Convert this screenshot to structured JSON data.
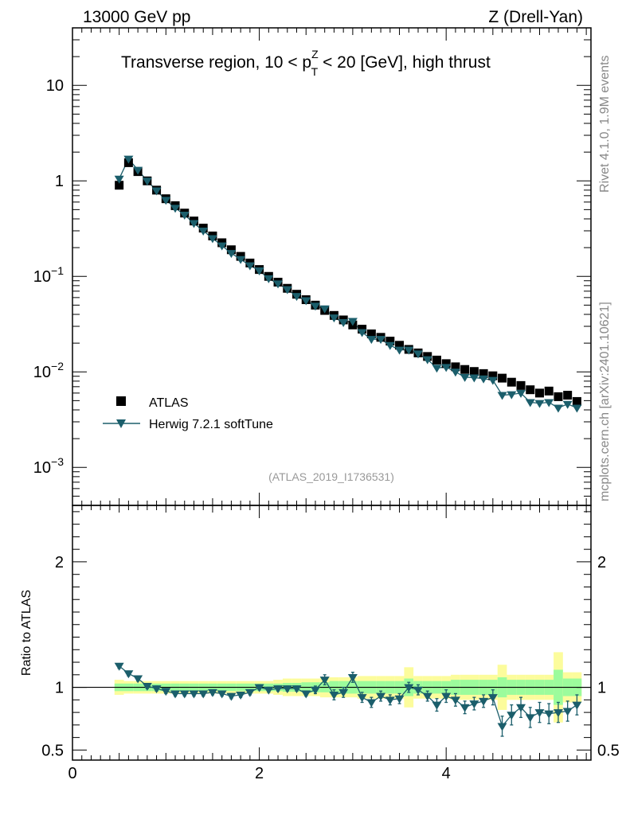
{
  "header": {
    "left": "13000 GeV pp",
    "right": "Z (Drell-Yan)"
  },
  "side_labels": {
    "rivet": "Rivet 4.1.0,  1.9M events",
    "mcplots": "mcplots.cern.ch [arXiv:2401.10621]"
  },
  "reference": "(ATLAS_2019_I1736531)",
  "colors": {
    "mc": "#1b5e6b",
    "data": "#000000",
    "band_inner": "#9cfc9c",
    "band_outer": "#fcfc9c"
  },
  "chart_data": [
    {
      "type": "scatter",
      "title": "Transverse region, 10 < p_T^Z < 20 [GeV], high thrust",
      "title_parts": {
        "prefix": "Transverse region, 10 < p",
        "sup": "Z",
        "sub": "T",
        "suffix": " < 20 [GeV], high thrust"
      },
      "yscale": "log",
      "ylim": [
        0.0004,
        40
      ],
      "xlim": [
        0,
        5.55
      ],
      "y_tick_labels": [
        "10",
        "1",
        "10^-1",
        "10^-2",
        "10^-3"
      ],
      "y_tick_parts": [
        {
          "base": "10",
          "exp": ""
        },
        {
          "base": "1",
          "exp": ""
        },
        {
          "base": "10",
          "exp": "−1"
        },
        {
          "base": "10",
          "exp": "−2"
        },
        {
          "base": "10",
          "exp": "−3"
        }
      ],
      "legend_position": "lower-left",
      "x": [
        0.5,
        0.6,
        0.7,
        0.8,
        0.9,
        1.0,
        1.1,
        1.2,
        1.3,
        1.4,
        1.5,
        1.6,
        1.7,
        1.8,
        1.9,
        2.0,
        2.1,
        2.2,
        2.3,
        2.4,
        2.5,
        2.6,
        2.7,
        2.8,
        2.9,
        3.0,
        3.1,
        3.2,
        3.3,
        3.4,
        3.5,
        3.6,
        3.7,
        3.8,
        3.9,
        4.0,
        4.1,
        4.2,
        4.3,
        4.4,
        4.5,
        4.6,
        4.7,
        4.8,
        4.9,
        5.0,
        5.1,
        5.2,
        5.3,
        5.4
      ],
      "series": [
        {
          "name": "ATLAS",
          "marker": "square",
          "values": [
            0.9,
            1.55,
            1.25,
            1.0,
            0.8,
            0.65,
            0.55,
            0.46,
            0.38,
            0.32,
            0.265,
            0.225,
            0.19,
            0.162,
            0.138,
            0.118,
            0.1,
            0.087,
            0.075,
            0.065,
            0.057,
            0.05,
            0.044,
            0.039,
            0.035,
            0.031,
            0.028,
            0.025,
            0.023,
            0.021,
            0.019,
            0.0172,
            0.0158,
            0.0145,
            0.0133,
            0.0122,
            0.0113,
            0.0106,
            0.0101,
            0.0096,
            0.0091,
            0.0086,
            0.0078,
            0.0072,
            0.0065,
            0.006,
            0.0063,
            0.0055,
            0.0057,
            0.0049
          ]
        },
        {
          "name": "Herwig 7.2.1 softTune",
          "marker": "triangle-down",
          "values": [
            1.05,
            1.7,
            1.3,
            1.0,
            0.79,
            0.63,
            0.52,
            0.44,
            0.36,
            0.3,
            0.25,
            0.21,
            0.175,
            0.151,
            0.13,
            0.115,
            0.095,
            0.084,
            0.073,
            0.062,
            0.056,
            0.049,
            0.046,
            0.037,
            0.033,
            0.034,
            0.026,
            0.022,
            0.022,
            0.019,
            0.017,
            0.017,
            0.0155,
            0.0135,
            0.011,
            0.0112,
            0.01,
            0.0088,
            0.0087,
            0.0085,
            0.0082,
            0.0057,
            0.0058,
            0.006,
            0.0048,
            0.0047,
            0.0048,
            0.0042,
            0.0046,
            0.0042
          ]
        }
      ]
    },
    {
      "type": "scatter",
      "title": "",
      "xlabel": "",
      "ylabel": "Ratio to ATLAS",
      "ylim": [
        0.42,
        2.45
      ],
      "xlim": [
        0,
        5.55
      ],
      "x_ticks": [
        0,
        2,
        4
      ],
      "x_tick_labels": [
        "0",
        "2",
        "4"
      ],
      "y_ticks": [
        0.5,
        1,
        2
      ],
      "y_tick_labels": [
        "0.5",
        "1",
        "2"
      ],
      "x": [
        0.5,
        0.6,
        0.7,
        0.8,
        0.9,
        1.0,
        1.1,
        1.2,
        1.3,
        1.4,
        1.5,
        1.6,
        1.7,
        1.8,
        1.9,
        2.0,
        2.1,
        2.2,
        2.3,
        2.4,
        2.5,
        2.6,
        2.7,
        2.8,
        2.9,
        3.0,
        3.1,
        3.2,
        3.3,
        3.4,
        3.5,
        3.6,
        3.7,
        3.8,
        3.9,
        4.0,
        4.1,
        4.2,
        4.3,
        4.4,
        4.5,
        4.6,
        4.7,
        4.8,
        4.9,
        5.0,
        5.1,
        5.2,
        5.3,
        5.4
      ],
      "band_inner_half": [
        0.03,
        0.03,
        0.03,
        0.03,
        0.03,
        0.03,
        0.03,
        0.03,
        0.03,
        0.03,
        0.03,
        0.03,
        0.03,
        0.03,
        0.03,
        0.03,
        0.03,
        0.03,
        0.035,
        0.035,
        0.04,
        0.04,
        0.04,
        0.05,
        0.05,
        0.05,
        0.05,
        0.05,
        0.05,
        0.05,
        0.05,
        0.07,
        0.05,
        0.05,
        0.05,
        0.05,
        0.06,
        0.06,
        0.06,
        0.06,
        0.06,
        0.08,
        0.06,
        0.06,
        0.06,
        0.06,
        0.06,
        0.14,
        0.07,
        0.07
      ],
      "band_outer_half": [
        0.06,
        0.05,
        0.05,
        0.05,
        0.05,
        0.05,
        0.05,
        0.05,
        0.05,
        0.05,
        0.05,
        0.05,
        0.05,
        0.05,
        0.05,
        0.05,
        0.05,
        0.06,
        0.07,
        0.07,
        0.07,
        0.07,
        0.08,
        0.08,
        0.08,
        0.08,
        0.09,
        0.09,
        0.09,
        0.09,
        0.09,
        0.16,
        0.09,
        0.09,
        0.09,
        0.09,
        0.1,
        0.1,
        0.1,
        0.1,
        0.1,
        0.18,
        0.1,
        0.1,
        0.1,
        0.1,
        0.1,
        0.28,
        0.12,
        0.12
      ],
      "series": [
        {
          "name": "Herwig 7.2.1 softTune / ATLAS",
          "values": [
            1.17,
            1.11,
            1.07,
            1.01,
            0.99,
            0.97,
            0.95,
            0.95,
            0.95,
            0.95,
            0.96,
            0.95,
            0.93,
            0.94,
            0.96,
            1.0,
            0.98,
            0.99,
            0.99,
            0.99,
            0.95,
            0.98,
            1.06,
            0.94,
            0.96,
            1.08,
            0.92,
            0.88,
            0.93,
            0.9,
            0.91,
            1.0,
            0.98,
            0.93,
            0.86,
            0.93,
            0.9,
            0.84,
            0.87,
            0.89,
            0.92,
            0.69,
            0.78,
            0.84,
            0.76,
            0.8,
            0.79,
            0.8,
            0.81,
            0.86
          ],
          "errors": [
            0.02,
            0.02,
            0.02,
            0.02,
            0.02,
            0.02,
            0.02,
            0.02,
            0.02,
            0.02,
            0.02,
            0.02,
            0.02,
            0.02,
            0.02,
            0.02,
            0.02,
            0.02,
            0.02,
            0.02,
            0.02,
            0.03,
            0.04,
            0.04,
            0.04,
            0.04,
            0.04,
            0.04,
            0.04,
            0.04,
            0.04,
            0.04,
            0.04,
            0.04,
            0.05,
            0.05,
            0.05,
            0.05,
            0.05,
            0.05,
            0.06,
            0.08,
            0.08,
            0.08,
            0.08,
            0.08,
            0.08,
            0.08,
            0.08,
            0.08
          ]
        }
      ]
    }
  ]
}
